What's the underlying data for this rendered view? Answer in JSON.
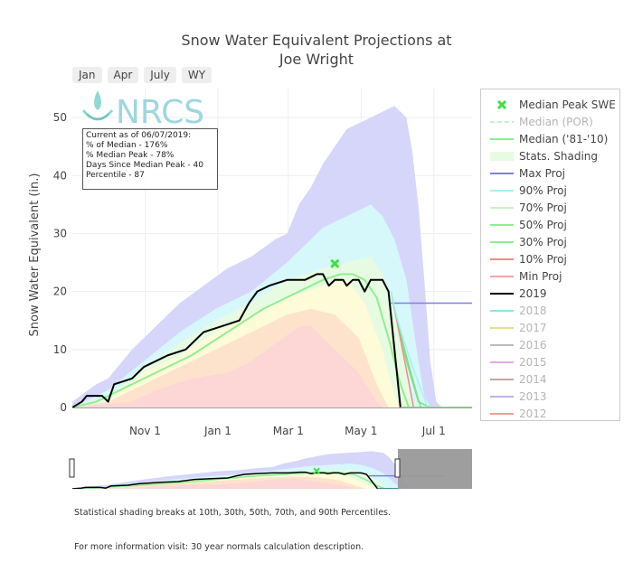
{
  "title_line1": "Snow Water Equivalent Projections at",
  "title_line2": "Joe Wright",
  "range_buttons": [
    "Jan",
    "Apr",
    "July",
    "WY"
  ],
  "logo_text": "NRCS",
  "info_box": {
    "line1": "Current as of 06/07/2019:",
    "line2": "% of Median - 176%",
    "line3": "% Median Peak - 78%",
    "line4": "Days Since Median Peak - 40",
    "line5": "Percentile - 87"
  },
  "footnote1": "Statistical shading breaks at 10th, 30th, 50th, 70th, and 90th Percentiles.",
  "footnote2": "For more information visit: 30 year normals calculation description.",
  "colors": {
    "max_band": "#d6d6fb",
    "p90_band": "#d7f8fa",
    "p70_band": "#e6fbe2",
    "p50_band": "#fdfbd8",
    "p30_band": "#fde3cc",
    "min_band": "#fdd6d6",
    "median": "#90ee90",
    "current": "#000000",
    "peak_marker": "#3ee03e",
    "max_proj": "#7f7fe8"
  },
  "chart_data": {
    "type": "line",
    "title": "Snow Water Equivalent Projections at Joe Wright",
    "ylabel": "Snow Water Equivalent (in.)",
    "xlabel": "",
    "x_ticks": [
      "Nov 1",
      "Jan 1",
      "Mar 1",
      "May 1",
      "Jul 1"
    ],
    "y_ticks": [
      0,
      10,
      20,
      30,
      40,
      50
    ],
    "ylim": [
      0,
      55
    ],
    "xlim_days": [
      -30,
      305
    ],
    "grid": true,
    "legend_position": "right",
    "legend": [
      {
        "name": "Median Peak SWE",
        "color": "#3ee03e",
        "style": "marker",
        "dim": false
      },
      {
        "name": "Median (POR)",
        "color": "#c6f5c6",
        "style": "dash",
        "dim": true
      },
      {
        "name": "Median ('81-'10)",
        "color": "#90ee90",
        "style": "line",
        "dim": false
      },
      {
        "name": "Stats. Shading",
        "color": "#e6fbe2",
        "style": "fill",
        "dim": false
      },
      {
        "name": "Max Proj",
        "color": "#7f7fe8",
        "style": "line",
        "dim": false
      },
      {
        "name": "90% Proj",
        "color": "#a7f0f5",
        "style": "line",
        "dim": false
      },
      {
        "name": "70% Proj",
        "color": "#c6f5c6",
        "style": "line",
        "dim": false
      },
      {
        "name": "50% Proj",
        "color": "#90ee90",
        "style": "line",
        "dim": false
      },
      {
        "name": "30% Proj",
        "color": "#90ee90",
        "style": "line",
        "dim": false
      },
      {
        "name": "10% Proj",
        "color": "#f08a8a",
        "style": "line",
        "dim": false
      },
      {
        "name": "Min Proj",
        "color": "#f0a8a8",
        "style": "line",
        "dim": false
      },
      {
        "name": "2019",
        "color": "#000000",
        "style": "line",
        "dim": false
      },
      {
        "name": "2018",
        "color": "#8fe3e8",
        "style": "line",
        "dim": true
      },
      {
        "name": "2017",
        "color": "#e0e38a",
        "style": "line",
        "dim": true
      },
      {
        "name": "2016",
        "color": "#bbbbbb",
        "style": "line",
        "dim": true
      },
      {
        "name": "2015",
        "color": "#e8a8e0",
        "style": "line",
        "dim": true
      },
      {
        "name": "2014",
        "color": "#c2a8a0",
        "style": "line",
        "dim": true
      },
      {
        "name": "2013",
        "color": "#c2b0e8",
        "style": "line",
        "dim": true
      },
      {
        "name": "2012",
        "color": "#e8a090",
        "style": "line",
        "dim": true
      }
    ],
    "bands": [
      {
        "name": "Max",
        "upper": [
          [
            -30,
            1
          ],
          [
            -10,
            4
          ],
          [
            0,
            5
          ],
          [
            20,
            10
          ],
          [
            40,
            14
          ],
          [
            60,
            18
          ],
          [
            80,
            21
          ],
          [
            100,
            24
          ],
          [
            120,
            26
          ],
          [
            140,
            29
          ],
          [
            150,
            30
          ],
          [
            160,
            35
          ],
          [
            170,
            38
          ],
          [
            180,
            42
          ],
          [
            190,
            45
          ],
          [
            200,
            48
          ],
          [
            210,
            49
          ],
          [
            220,
            50
          ],
          [
            230,
            51
          ],
          [
            240,
            52
          ],
          [
            245,
            51
          ],
          [
            250,
            50
          ],
          [
            255,
            44
          ],
          [
            260,
            35
          ],
          [
            265,
            22
          ],
          [
            270,
            8
          ],
          [
            275,
            1
          ],
          [
            280,
            0
          ]
        ]
      },
      {
        "name": "90%",
        "upper": [
          [
            -30,
            0
          ],
          [
            0,
            3
          ],
          [
            30,
            8
          ],
          [
            60,
            13
          ],
          [
            90,
            17
          ],
          [
            120,
            20
          ],
          [
            150,
            25
          ],
          [
            180,
            31
          ],
          [
            200,
            33
          ],
          [
            220,
            35
          ],
          [
            230,
            33
          ],
          [
            240,
            29
          ],
          [
            250,
            22
          ],
          [
            260,
            8
          ],
          [
            265,
            2
          ],
          [
            270,
            0
          ]
        ]
      },
      {
        "name": "70%",
        "upper": [
          [
            -30,
            0
          ],
          [
            0,
            2
          ],
          [
            30,
            7
          ],
          [
            60,
            11
          ],
          [
            90,
            15
          ],
          [
            120,
            18
          ],
          [
            150,
            22
          ],
          [
            180,
            24
          ],
          [
            200,
            25
          ],
          [
            220,
            26
          ],
          [
            230,
            23
          ],
          [
            240,
            16
          ],
          [
            250,
            6
          ],
          [
            255,
            0
          ]
        ]
      },
      {
        "name": "50%",
        "upper": [
          [
            -30,
            0
          ],
          [
            0,
            1
          ],
          [
            30,
            6
          ],
          [
            60,
            9
          ],
          [
            90,
            13
          ],
          [
            120,
            16
          ],
          [
            150,
            19
          ],
          [
            180,
            21
          ],
          [
            200,
            22
          ],
          [
            215,
            18
          ],
          [
            230,
            10
          ],
          [
            240,
            2
          ],
          [
            245,
            0
          ]
        ]
      },
      {
        "name": "30%",
        "upper": [
          [
            -30,
            0
          ],
          [
            0,
            1
          ],
          [
            30,
            4
          ],
          [
            60,
            7
          ],
          [
            90,
            10
          ],
          [
            120,
            13
          ],
          [
            150,
            16
          ],
          [
            170,
            17
          ],
          [
            190,
            16
          ],
          [
            210,
            12
          ],
          [
            225,
            4
          ],
          [
            235,
            0
          ]
        ]
      },
      {
        "name": "Min",
        "upper": [
          [
            -30,
            0
          ],
          [
            20,
            1
          ],
          [
            40,
            3
          ],
          [
            70,
            5
          ],
          [
            100,
            6
          ],
          [
            120,
            8
          ],
          [
            140,
            11
          ],
          [
            160,
            14
          ],
          [
            170,
            14
          ],
          [
            190,
            10
          ],
          [
            210,
            6
          ],
          [
            225,
            1
          ],
          [
            230,
            0
          ]
        ]
      }
    ],
    "series": [
      {
        "name": "Median ('81-'10)",
        "points": [
          [
            -30,
            0
          ],
          [
            -10,
            1
          ],
          [
            10,
            3
          ],
          [
            40,
            6
          ],
          [
            70,
            9
          ],
          [
            100,
            13
          ],
          [
            130,
            17
          ],
          [
            160,
            20
          ],
          [
            180,
            22
          ],
          [
            195,
            23
          ],
          [
            205,
            23
          ],
          [
            215,
            22
          ],
          [
            225,
            19
          ],
          [
            235,
            12
          ],
          [
            245,
            4
          ],
          [
            252,
            0
          ],
          [
            305,
            0
          ]
        ]
      },
      {
        "name": "2019",
        "points": [
          [
            -30,
            0
          ],
          [
            -22,
            1
          ],
          [
            -18,
            2
          ],
          [
            -5,
            2
          ],
          [
            0,
            1
          ],
          [
            5,
            4
          ],
          [
            20,
            5
          ],
          [
            30,
            7
          ],
          [
            50,
            9
          ],
          [
            65,
            10
          ],
          [
            80,
            13
          ],
          [
            95,
            14
          ],
          [
            110,
            15
          ],
          [
            118,
            18
          ],
          [
            125,
            20
          ],
          [
            135,
            21
          ],
          [
            150,
            22
          ],
          [
            165,
            22
          ],
          [
            175,
            23
          ],
          [
            180,
            23
          ],
          [
            185,
            21
          ],
          [
            190,
            22
          ],
          [
            197,
            22
          ],
          [
            200,
            21
          ],
          [
            205,
            22
          ],
          [
            210,
            22
          ],
          [
            215,
            20
          ],
          [
            220,
            22
          ],
          [
            230,
            22
          ],
          [
            235,
            20
          ],
          [
            245,
            0
          ]
        ]
      },
      {
        "name": "Max Proj",
        "points": [
          [
            237,
            18
          ],
          [
            245,
            18
          ],
          [
            305,
            18
          ]
        ]
      },
      {
        "name": "Projection fan",
        "points": [
          [
            237,
            20
          ],
          [
            250,
            8
          ],
          [
            260,
            1
          ],
          [
            270,
            0
          ],
          [
            305,
            0
          ]
        ]
      }
    ],
    "median_peak": {
      "x": 190,
      "y": 24.8
    }
  }
}
